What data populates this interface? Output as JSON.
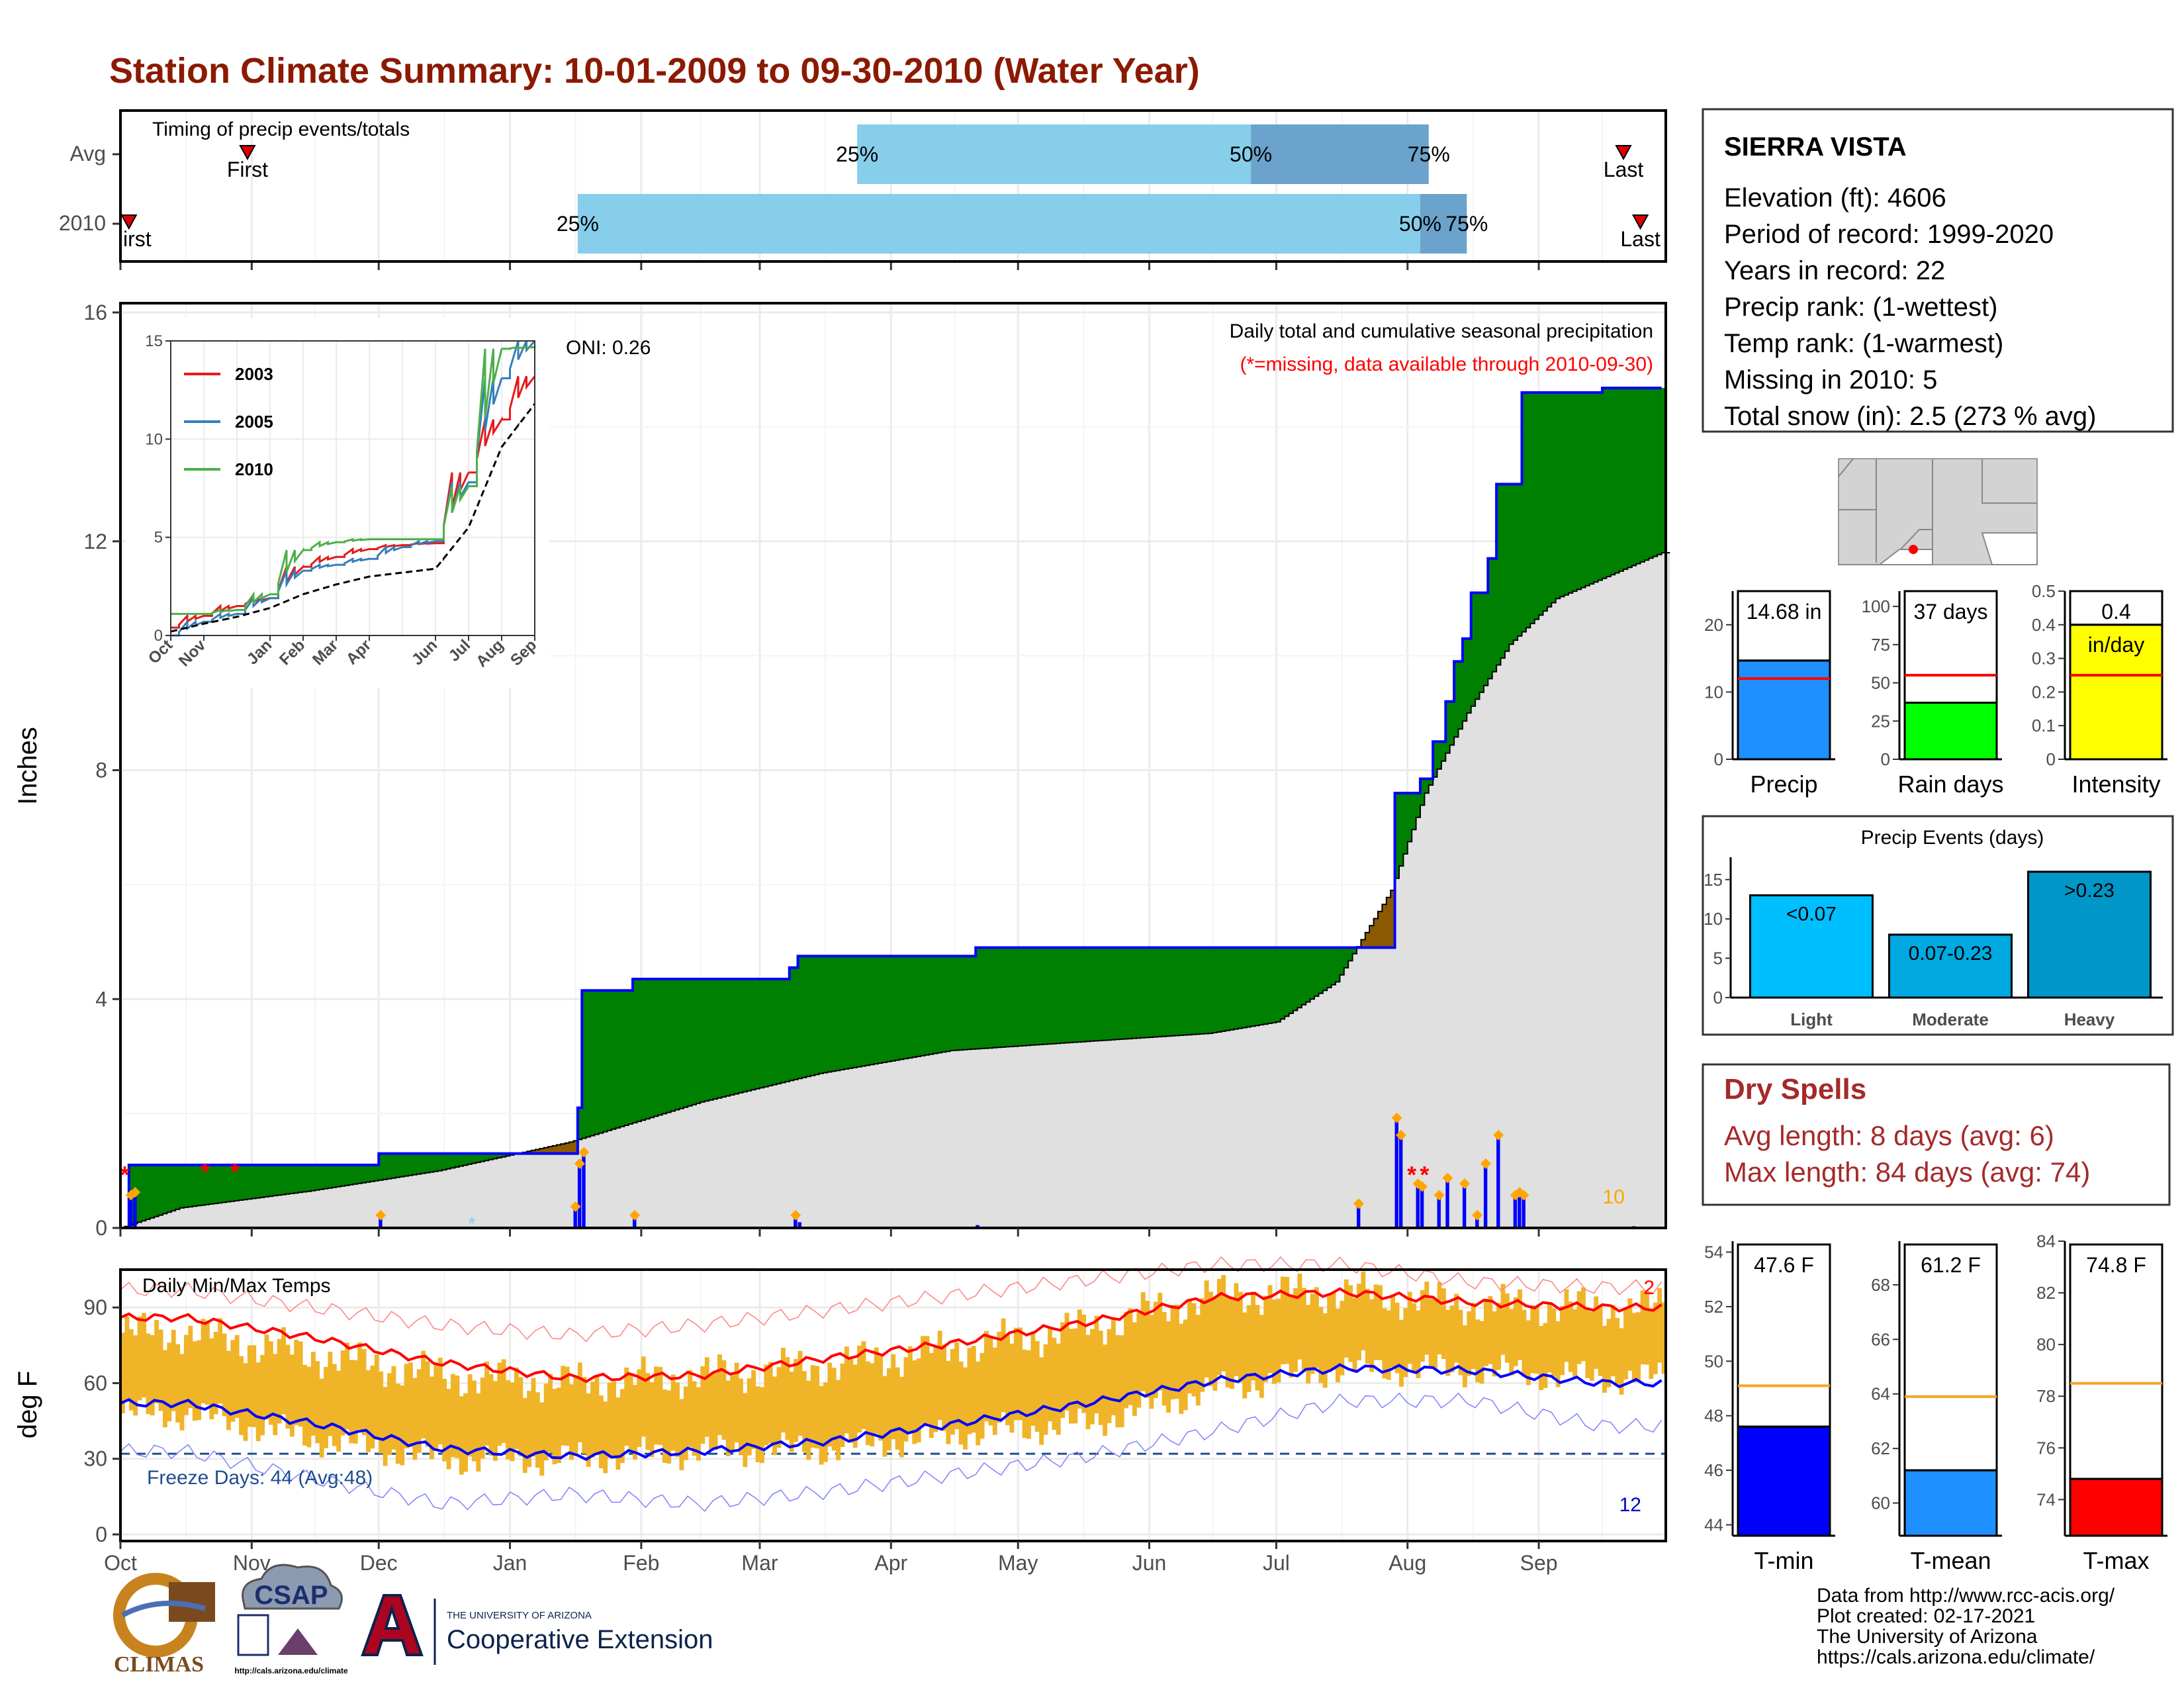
{
  "header": {
    "title": "Station Climate Summary: 10-01-2009 to 09-30-2010 (Water Year)",
    "title_color": "#8b1a00"
  },
  "station": {
    "name": "SIERRA VISTA",
    "lines": [
      "Elevation (ft): 4606",
      "Period of record: 1999-2020",
      "Years in record: 22",
      "Precip rank:  (1-wettest)",
      "Temp rank:  (1-warmest)",
      "Missing in 2010: 5",
      "Total snow (in): 2.5 (273 % avg)"
    ]
  },
  "dry_spells": {
    "title": "Dry Spells",
    "avg_length": "Avg length: 8 days (avg: 6)",
    "max_length": "Max length: 84 days (avg: 74)",
    "color": "#a52a2a"
  },
  "footer": {
    "lines": [
      "Data from http://www.rcc-acis.org/",
      "Plot created: 02-17-2021",
      "The University of Arizona",
      "https://cals.arizona.edu/climate/"
    ],
    "logos": {
      "climas": "CLIMAS",
      "csap": "CSAP",
      "csap_url": "http://cals.arizona.edu/climate",
      "ua_small": "THE UNIVERSITY OF ARIZONA",
      "ua_big": "Cooperative Extension"
    }
  },
  "chart_data": [
    {
      "id": "timing",
      "type": "bar",
      "title": "Timing of precip events/totals",
      "rows": [
        "Avg",
        "2010"
      ],
      "x_range": [
        "2009-10-01",
        "2010-09-30"
      ],
      "bars": [
        {
          "row": "Avg",
          "q25": "2010-03-24",
          "q50": "2010-06-25",
          "q75": "2010-08-06",
          "first": "2009-10-31",
          "last": "2010-09-21"
        },
        {
          "row": "2010",
          "q25": "2010-01-17",
          "q50": "2010-08-04",
          "q75": "2010-08-15",
          "first": "2009-10-03",
          "last": "2010-09-25"
        }
      ],
      "labels": {
        "q25": "25%",
        "q50": "50%",
        "q75": "75%",
        "first": "First",
        "last": "Last",
        "first_cut": "irst"
      },
      "colors": {
        "light": "#87ceeb",
        "dark": "#6ba3cc",
        "marker": "#dd0000"
      }
    },
    {
      "id": "precip",
      "type": "area",
      "ylabel": "Inches",
      "ylim": [
        0,
        16
      ],
      "yticks": [
        0,
        4,
        8,
        12,
        16
      ],
      "xticks": [
        "Oct",
        "Nov",
        "Dec",
        "Jan",
        "Feb",
        "Mar",
        "Apr",
        "May",
        "Jun",
        "Jul",
        "Aug",
        "Sep"
      ],
      "annotation": "Daily total and cumulative seasonal precipitation",
      "missing_note": "(*=missing, data available through 2010-09-30)",
      "oni": "ONI: 0.26",
      "corner_count": "10",
      "cumulative_2010": [
        {
          "date": "2009-10-01",
          "v": 0.0
        },
        {
          "date": "2009-10-03",
          "v": 1.1
        },
        {
          "date": "2009-11-30",
          "v": 1.1
        },
        {
          "date": "2009-12-01",
          "v": 1.3
        },
        {
          "date": "2009-12-30",
          "v": 1.3
        },
        {
          "date": "2010-01-17",
          "v": 2.1
        },
        {
          "date": "2010-01-18",
          "v": 4.15
        },
        {
          "date": "2010-01-30",
          "v": 4.35
        },
        {
          "date": "2010-03-08",
          "v": 4.55
        },
        {
          "date": "2010-03-10",
          "v": 4.75
        },
        {
          "date": "2010-04-21",
          "v": 4.9
        },
        {
          "date": "2010-07-23",
          "v": 4.9
        },
        {
          "date": "2010-07-29",
          "v": 7.6
        },
        {
          "date": "2010-08-04",
          "v": 7.85
        },
        {
          "date": "2010-08-07",
          "v": 8.5
        },
        {
          "date": "2010-08-10",
          "v": 9.2
        },
        {
          "date": "2010-08-12",
          "v": 9.9
        },
        {
          "date": "2010-08-14",
          "v": 10.3
        },
        {
          "date": "2010-08-16",
          "v": 11.1
        },
        {
          "date": "2010-08-20",
          "v": 11.7
        },
        {
          "date": "2010-08-22",
          "v": 13.0
        },
        {
          "date": "2010-08-28",
          "v": 14.6
        },
        {
          "date": "2010-09-15",
          "v": 14.6
        },
        {
          "date": "2010-09-16",
          "v": 14.68
        },
        {
          "date": "2010-09-30",
          "v": 14.68
        }
      ],
      "cumulative_avg": [
        {
          "date": "2009-10-01",
          "v": 0.0
        },
        {
          "date": "2009-10-15",
          "v": 0.35
        },
        {
          "date": "2009-11-15",
          "v": 0.65
        },
        {
          "date": "2009-12-15",
          "v": 1.0
        },
        {
          "date": "2010-01-15",
          "v": 1.5
        },
        {
          "date": "2010-02-15",
          "v": 2.2
        },
        {
          "date": "2010-03-15",
          "v": 2.7
        },
        {
          "date": "2010-04-15",
          "v": 3.1
        },
        {
          "date": "2010-05-15",
          "v": 3.25
        },
        {
          "date": "2010-06-15",
          "v": 3.4
        },
        {
          "date": "2010-07-01",
          "v": 3.6
        },
        {
          "date": "2010-07-15",
          "v": 4.3
        },
        {
          "date": "2010-07-28",
          "v": 5.9
        },
        {
          "date": "2010-08-05",
          "v": 7.6
        },
        {
          "date": "2010-08-15",
          "v": 9.0
        },
        {
          "date": "2010-08-25",
          "v": 10.2
        },
        {
          "date": "2010-09-05",
          "v": 11.0
        },
        {
          "date": "2010-09-30",
          "v": 11.8
        }
      ],
      "daily_bars": [
        {
          "date": "2009-10-03",
          "v": 0.55
        },
        {
          "date": "2009-10-04",
          "v": 0.6
        },
        {
          "date": "2009-12-01",
          "v": 0.2
        },
        {
          "date": "2010-01-16",
          "v": 0.35
        },
        {
          "date": "2010-01-17",
          "v": 1.1
        },
        {
          "date": "2010-01-18",
          "v": 1.3
        },
        {
          "date": "2010-01-30",
          "v": 0.2
        },
        {
          "date": "2010-03-09",
          "v": 0.2
        },
        {
          "date": "2010-03-10",
          "v": 0.1
        },
        {
          "date": "2010-04-21",
          "v": 0.05
        },
        {
          "date": "2010-06-30",
          "v": 0.0
        },
        {
          "date": "2010-07-20",
          "v": 0.4
        },
        {
          "date": "2010-07-29",
          "v": 1.9
        },
        {
          "date": "2010-07-30",
          "v": 1.6
        },
        {
          "date": "2010-08-03",
          "v": 0.75
        },
        {
          "date": "2010-08-04",
          "v": 0.7
        },
        {
          "date": "2010-08-08",
          "v": 0.55
        },
        {
          "date": "2010-08-10",
          "v": 0.85
        },
        {
          "date": "2010-08-14",
          "v": 0.75
        },
        {
          "date": "2010-08-17",
          "v": 0.2
        },
        {
          "date": "2010-08-19",
          "v": 1.1
        },
        {
          "date": "2010-08-22",
          "v": 1.6
        },
        {
          "date": "2010-08-26",
          "v": 0.55
        },
        {
          "date": "2010-08-27",
          "v": 0.6
        },
        {
          "date": "2010-08-28",
          "v": 0.55
        },
        {
          "date": "2010-09-23",
          "v": 0.03
        }
      ],
      "missing_dates": [
        "2009-10-02",
        "2009-10-21",
        "2009-10-28",
        "2010-08-02",
        "2010-08-05"
      ],
      "snow_dates": [
        "2009-12-23"
      ],
      "colors": {
        "above": "#008000",
        "below": "#8b5a00",
        "avg_fill": "#e0e0e0",
        "line": "#0000ff",
        "bars": "#0000ff",
        "markers": "#ffa500",
        "missing": "#ff0000",
        "snow": "#87ceeb"
      }
    },
    {
      "id": "inset",
      "type": "line",
      "ylim": [
        0,
        15
      ],
      "yticks": [
        0,
        5,
        10,
        15
      ],
      "xticks": [
        "Oct",
        "Nov",
        "Dec",
        "Jan",
        "Feb",
        "Mar",
        "Apr",
        "May",
        "Jun",
        "Jul",
        "Aug",
        "Sep"
      ],
      "series": [
        {
          "name": "2003",
          "color": "#e41a1c",
          "values": [
            0.4,
            1.0,
            1.5,
            1.9,
            3.5,
            4.0,
            4.4,
            4.6,
            4.7,
            8.3,
            11.0,
            13.2
          ]
        },
        {
          "name": "2005",
          "color": "#377eb8",
          "values": [
            0.0,
            0.7,
            1.1,
            1.9,
            3.3,
            3.6,
            3.9,
            4.5,
            4.8,
            7.8,
            13.1,
            15.0
          ]
        },
        {
          "name": "2010",
          "color": "#4daf4a",
          "values": [
            1.1,
            1.1,
            1.3,
            2.1,
            4.35,
            4.75,
            4.9,
            4.9,
            4.9,
            7.6,
            14.6,
            14.68
          ]
        },
        {
          "color": "#000000",
          "dashed": true,
          "values": [
            0.2,
            0.6,
            0.95,
            1.4,
            2.1,
            2.6,
            3.0,
            3.2,
            3.4,
            5.5,
            9.6,
            11.8
          ]
        }
      ]
    },
    {
      "id": "temps",
      "type": "line",
      "title": "Daily Min/Max Temps",
      "ylabel": "deg F",
      "ylim": [
        0,
        105
      ],
      "yticks": [
        0,
        30,
        60,
        90
      ],
      "xticks": [
        "Oct",
        "Nov",
        "Dec",
        "Jan",
        "Feb",
        "Mar",
        "Apr",
        "May",
        "Jun",
        "Jul",
        "Aug",
        "Sep"
      ],
      "freeze_label": "Freeze Days: 44 (Avg:48)",
      "freeze_line": 32,
      "max_record_count": "2",
      "min_record_count": "12",
      "monthly_max": [
        80,
        71,
        63,
        60,
        63,
        67,
        74,
        82,
        95,
        96,
        91,
        90
      ],
      "monthly_min": [
        48,
        38,
        30,
        30,
        33,
        34,
        40,
        44,
        58,
        66,
        65,
        62
      ],
      "avg_max": [
        86,
        78,
        68,
        62,
        63,
        70,
        76,
        84,
        94,
        96,
        92,
        90
      ],
      "avg_min": [
        52,
        44,
        34,
        31,
        33,
        37,
        44,
        52,
        61,
        66,
        65,
        60
      ],
      "rec_max": [
        97,
        90,
        83,
        79,
        83,
        89,
        95,
        101,
        107,
        107,
        100,
        98
      ],
      "rec_min": [
        33,
        22,
        12,
        16,
        12,
        17,
        24,
        31,
        41,
        53,
        53,
        43
      ],
      "colors": {
        "bars": "#f0b429",
        "max_line": "#ff0000",
        "min_line": "#0000ff",
        "rec_max": "#ff8080",
        "rec_min": "#8080ff",
        "freeze": "#1f4e8c"
      }
    },
    {
      "id": "summary-precip",
      "type": "bar",
      "panels": [
        {
          "label": "Precip",
          "value": 14.68,
          "text": "14.68 in",
          "avg": 12.0,
          "ylim": [
            0,
            25
          ],
          "yticks": [
            0,
            10,
            20
          ],
          "color": "#1e90ff"
        },
        {
          "label": "Rain days",
          "value": 37,
          "text": "37 days",
          "avg": 55,
          "ylim": [
            0,
            110
          ],
          "yticks": [
            0,
            25,
            50,
            75,
            100
          ],
          "color": "#00ff00"
        },
        {
          "label": "Intensity",
          "value": 0.4,
          "text": "0.4",
          "text2": "in/day",
          "avg": 0.25,
          "ylim": [
            0,
            0.5
          ],
          "yticks": [
            0.0,
            0.1,
            0.2,
            0.3,
            0.4,
            0.5
          ],
          "color": "#ffff00"
        }
      ]
    },
    {
      "id": "events",
      "type": "bar",
      "title": "Precip Events (days)",
      "categories": [
        "Light",
        "Moderate",
        "Heavy"
      ],
      "values": [
        13,
        8,
        16
      ],
      "bar_labels": [
        "<0.07",
        "0.07-0.23",
        ">0.23"
      ],
      "colors": [
        "#00bfff",
        "#00a8e0",
        "#0096c7"
      ],
      "ylim": [
        0,
        17
      ],
      "yticks": [
        0,
        5,
        10,
        15
      ]
    },
    {
      "id": "summary-temp",
      "type": "bar",
      "panels": [
        {
          "label": "T-min",
          "value": 47.6,
          "text": "47.6 F",
          "avg": 49.1,
          "ylim": [
            43.6,
            54.4
          ],
          "yticks": [
            44,
            46,
            48,
            50,
            52,
            54
          ],
          "color": "#0000ff"
        },
        {
          "label": "T-mean",
          "value": 61.2,
          "text": "61.2 F",
          "avg": 63.9,
          "ylim": [
            58.8,
            69.6
          ],
          "yticks": [
            60,
            62,
            64,
            66,
            68
          ],
          "color": "#1e90ff"
        },
        {
          "label": "T-max",
          "value": 74.8,
          "text": "74.8 F",
          "avg": 78.5,
          "ylim": [
            72.6,
            84.0
          ],
          "yticks": [
            74,
            76,
            78,
            80,
            82,
            84
          ],
          "color": "#ff0000"
        }
      ]
    }
  ]
}
